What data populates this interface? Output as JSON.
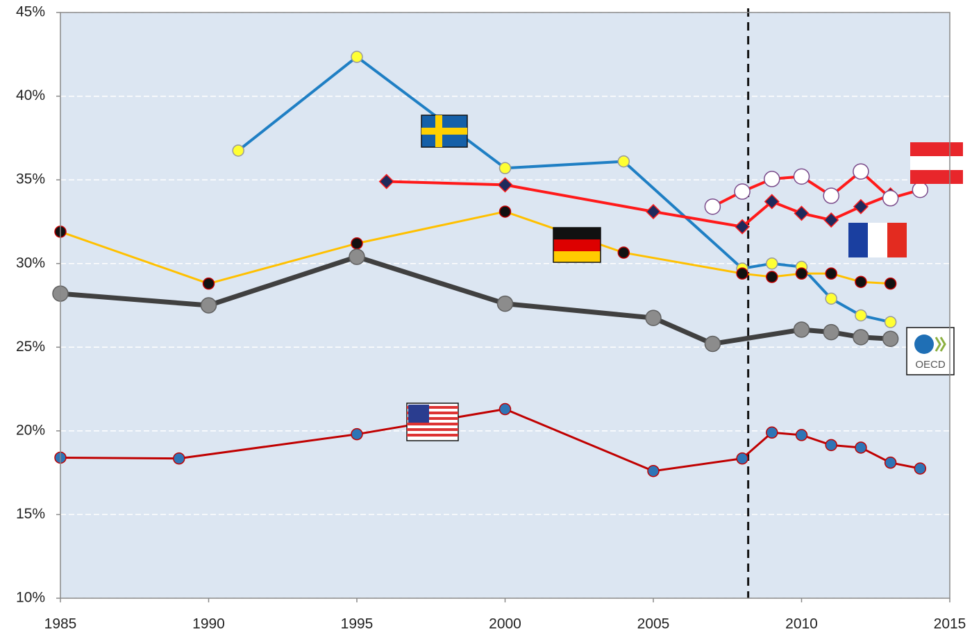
{
  "chart_data": {
    "type": "line",
    "xlim": [
      1985,
      2015
    ],
    "xticks": [
      1985,
      1990,
      1995,
      2000,
      2005,
      2010,
      2015
    ],
    "ylim": [
      10,
      45
    ],
    "yticks": [
      {
        "value": 10,
        "label": "10%"
      },
      {
        "value": 15,
        "label": "15%"
      },
      {
        "value": 20,
        "label": "20%"
      },
      {
        "value": 25,
        "label": "25%"
      },
      {
        "value": 30,
        "label": "30%"
      },
      {
        "value": 35,
        "label": "35%"
      },
      {
        "value": 40,
        "label": "40%"
      },
      {
        "value": 45,
        "label": "45%"
      }
    ],
    "grid": true,
    "background": "#dce6f2",
    "vline": 2008.2,
    "annotation": "OECD",
    "series": [
      {
        "color": "#1f7fc4",
        "width": 4,
        "marker": "circle",
        "marker_fill": "#ffff33",
        "marker_stroke": "#999999",
        "marker_size": 8,
        "x": [
          1991,
          1995,
          2000,
          2004,
          2008,
          2009,
          2010,
          2011,
          2012,
          2013
        ],
        "values": [
          36.75,
          42.35,
          35.7,
          36.1,
          29.7,
          30.0,
          29.8,
          27.9,
          26.9,
          26.5
        ]
      },
      {
        "color": "#ff1a1a",
        "width": 4,
        "marker": "diamond",
        "marker_fill": "#1f2a5c",
        "marker_stroke": "#ff1a1a",
        "marker_size": 10,
        "x": [
          1996,
          2000,
          2005,
          2008,
          2009,
          2010,
          2011,
          2012,
          2013
        ],
        "values": [
          34.9,
          34.7,
          33.1,
          32.2,
          33.7,
          33.0,
          32.6,
          33.4,
          34.1
        ]
      },
      {
        "color": "#ff1a1a",
        "width": 4,
        "marker": "circle",
        "marker_fill": "#ffffff",
        "marker_stroke": "#7a4a8a",
        "marker_size": 11,
        "x": [
          2007,
          2008,
          2009,
          2010,
          2011,
          2012,
          2013,
          2014
        ],
        "values": [
          33.4,
          34.3,
          35.05,
          35.2,
          34.05,
          35.5,
          33.9,
          34.4
        ]
      },
      {
        "color": "#ffc000",
        "width": 3,
        "marker": "circle",
        "marker_fill": "#111111",
        "marker_stroke": "#c00000",
        "marker_size": 8,
        "x": [
          1985,
          1990,
          1995,
          2000,
          2004,
          2008,
          2009,
          2010,
          2011,
          2012,
          2013
        ],
        "values": [
          31.9,
          28.8,
          31.2,
          33.1,
          30.65,
          29.4,
          29.2,
          29.4,
          29.4,
          28.9,
          28.8
        ]
      },
      {
        "color": "#404040",
        "width": 7,
        "marker": "circle",
        "marker_fill": "#8c8c8c",
        "marker_stroke": "#606060",
        "marker_size": 11,
        "x": [
          1985,
          1990,
          1995,
          2000,
          2005,
          2007,
          2010,
          2011,
          2012,
          2013
        ],
        "values": [
          28.2,
          27.5,
          30.4,
          27.6,
          26.75,
          25.2,
          26.05,
          25.9,
          25.6,
          25.5
        ]
      },
      {
        "color": "#c00000",
        "width": 3,
        "marker": "circle",
        "marker_fill": "#2e75b6",
        "marker_stroke": "#c00000",
        "marker_size": 8,
        "x": [
          1985,
          1989,
          1995,
          2000,
          2005,
          2008,
          2009,
          2010,
          2011,
          2012,
          2013,
          2014
        ],
        "values": [
          18.4,
          18.35,
          19.8,
          21.3,
          17.6,
          18.35,
          19.9,
          19.75,
          19.15,
          19.0,
          18.1,
          17.75
        ]
      }
    ]
  }
}
